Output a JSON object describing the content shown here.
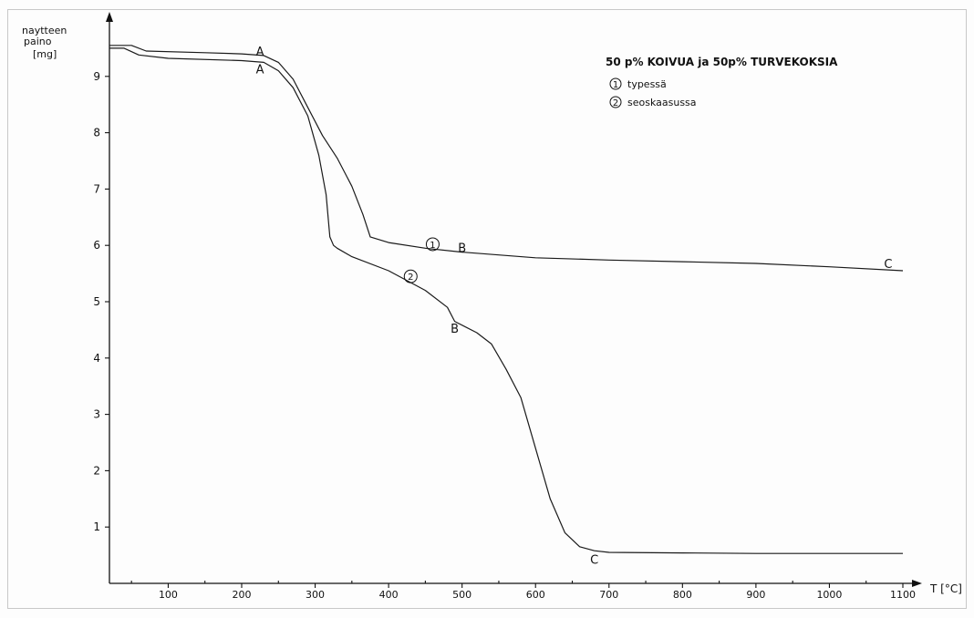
{
  "chart_data": {
    "type": "line",
    "title": "50 p% KOIVUA ja 50p% TURVEKOKSIA",
    "ylabel_lines": [
      "naytteen",
      "paino",
      "[mg]"
    ],
    "xlabel": "T [°C]",
    "xlim": [
      20,
      1100
    ],
    "ylim": [
      0,
      10
    ],
    "x_ticks": [
      100,
      200,
      300,
      400,
      500,
      600,
      700,
      800,
      900,
      1000,
      1100
    ],
    "y_ticks": [
      1,
      2,
      3,
      4,
      5,
      6,
      7,
      8,
      9
    ],
    "grid": false,
    "series": [
      {
        "name": "typessä",
        "marker_label": "1",
        "x": [
          20,
          50,
          70,
          150,
          200,
          230,
          250,
          270,
          290,
          310,
          330,
          350,
          365,
          375,
          400,
          450,
          500,
          600,
          700,
          800,
          900,
          1000,
          1100
        ],
        "y": [
          9.55,
          9.55,
          9.45,
          9.42,
          9.4,
          9.37,
          9.25,
          8.95,
          8.45,
          7.95,
          7.55,
          7.05,
          6.55,
          6.15,
          6.05,
          5.95,
          5.88,
          5.78,
          5.74,
          5.71,
          5.68,
          5.62,
          5.55
        ],
        "point_labels": [
          {
            "x": 225,
            "y": 9.37,
            "text": "A"
          },
          {
            "x": 500,
            "y": 5.88,
            "text": "B"
          },
          {
            "x": 1080,
            "y": 5.6,
            "text": "C"
          }
        ]
      },
      {
        "name": "seoskaasussa",
        "marker_label": "2",
        "x": [
          20,
          40,
          60,
          100,
          200,
          230,
          250,
          270,
          290,
          305,
          315,
          320,
          325,
          330,
          350,
          400,
          450,
          480,
          490,
          520,
          540,
          560,
          580,
          600,
          620,
          640,
          660,
          680,
          700,
          800,
          900,
          1000,
          1100
        ],
        "y": [
          9.5,
          9.5,
          9.38,
          9.32,
          9.28,
          9.25,
          9.1,
          8.8,
          8.3,
          7.6,
          6.9,
          6.15,
          6.0,
          5.95,
          5.8,
          5.55,
          5.2,
          4.9,
          4.65,
          4.45,
          4.25,
          3.8,
          3.3,
          2.4,
          1.5,
          0.9,
          0.65,
          0.58,
          0.55,
          0.54,
          0.53,
          0.53,
          0.53
        ],
        "point_labels": [
          {
            "x": 225,
            "y": 9.05,
            "text": "A"
          },
          {
            "x": 490,
            "y": 4.45,
            "text": "B"
          },
          {
            "x": 680,
            "y": 0.35,
            "text": "C"
          }
        ]
      }
    ]
  }
}
